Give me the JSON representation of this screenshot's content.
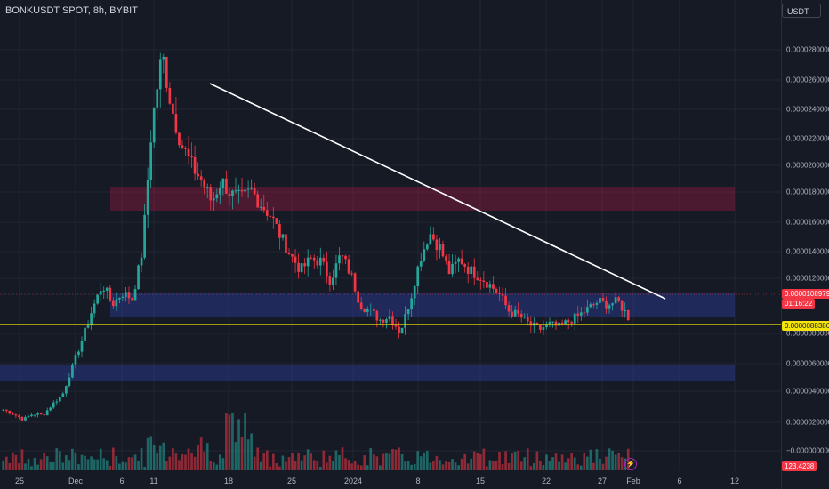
{
  "header": {
    "title": "BONKUSDT SPOT, 8h, BYBIT",
    "currency_button": "USDT"
  },
  "price_axis": {
    "ticks": [
      "0.0000280000",
      "0.0000260000",
      "0.0000240000",
      "0.0000220000",
      "0.0000200000",
      "0.0000180000",
      "0.0000160000",
      "0.0000140000",
      "0.0000120000",
      "0.0000080000",
      "0.0000060000",
      "0.0000040000",
      "0.0000020000",
      "−0.0000000000"
    ],
    "last_price": "0.0000108979",
    "countdown": "01:16:22",
    "level_label": "0.0000088386",
    "volume_label": "123.4238"
  },
  "time_axis": {
    "ticks": [
      "25",
      "Dec",
      "6",
      "11",
      "18",
      "25",
      "2024",
      "8",
      "15",
      "22",
      "27",
      "Feb",
      "6",
      "12"
    ]
  },
  "colors": {
    "background": "#161a25",
    "up": "#26a69a",
    "down": "#f23645",
    "resistance_zone": "#8b1d3f",
    "support_zone": "#2a3a8a",
    "level_line": "#f5e50b",
    "trendline": "#ffffff"
  },
  "chart_data": {
    "type": "candlestick",
    "symbol": "BONKUSDT",
    "timeframe": "8h",
    "exchange": "BYBIT",
    "ylim": [
      0,
      2.95e-05
    ],
    "close_path": [
      [
        "Nov 22",
        4.4e-06
      ],
      [
        "Nov 25",
        4.1e-06
      ],
      [
        "Nov 27",
        3.7e-06
      ],
      [
        "Nov 29",
        4.1e-06
      ],
      [
        "Dec 1",
        4e-06
      ],
      [
        "Dec 3",
        4.8e-06
      ],
      [
        "Dec 5",
        5.5e-06
      ],
      [
        "Dec 7",
        7.5e-06
      ],
      [
        "Dec 8",
        9.4e-06
      ],
      [
        "Dec 9",
        1.15e-05
      ],
      [
        "Dec 10",
        1.32e-05
      ],
      [
        "Dec 11",
        1.18e-05
      ],
      [
        "Dec 12",
        1.26e-05
      ],
      [
        "Dec 13",
        1.22e-05
      ],
      [
        "Dec 14",
        1.55e-05
      ],
      [
        "Dec 15",
        2.45e-05
      ],
      [
        "Dec 15",
        2.95e-05
      ],
      [
        "Dec 16",
        2.55e-05
      ],
      [
        "Dec 17",
        2.3e-05
      ],
      [
        "Dec 18",
        2.15e-05
      ],
      [
        "Dec 19",
        2.05e-05
      ],
      [
        "Dec 20",
        1.9e-05
      ],
      [
        "Dec 21",
        2.05e-05
      ],
      [
        "Dec 22",
        1.95e-05
      ],
      [
        "Dec 23",
        1.92e-05
      ],
      [
        "Dec 24",
        1.98e-05
      ],
      [
        "Dec 25",
        1.88e-05
      ],
      [
        "Dec 26",
        1.8e-05
      ],
      [
        "Dec 27",
        1.65e-05
      ],
      [
        "Dec 28",
        1.52e-05
      ],
      [
        "Dec 29",
        1.42e-05
      ],
      [
        "Dec 30",
        1.5e-05
      ],
      [
        "Dec 31",
        1.48e-05
      ],
      [
        "Jan 1",
        1.35e-05
      ],
      [
        "Jan 2",
        1.53e-05
      ],
      [
        "Jan 3",
        1.4e-05
      ],
      [
        "Jan 4",
        1.18e-05
      ],
      [
        "Jan 5",
        1.13e-05
      ],
      [
        "Jan 6",
        1.07e-05
      ],
      [
        "Jan 7",
        1.1e-05
      ],
      [
        "Jan 8",
        9.8e-06
      ],
      [
        "Jan 9",
        1.2e-05
      ],
      [
        "Jan 10",
        1.5e-05
      ],
      [
        "Jan 11",
        1.68e-05
      ],
      [
        "Jan 12",
        1.58e-05
      ],
      [
        "Jan 13",
        1.4e-05
      ],
      [
        "Jan 14",
        1.5e-05
      ],
      [
        "Jan 15",
        1.42e-05
      ],
      [
        "Jan 16",
        1.38e-05
      ],
      [
        "Jan 17",
        1.32e-05
      ],
      [
        "Jan 18",
        1.25e-05
      ],
      [
        "Jan 19",
        1.13e-05
      ],
      [
        "Jan 20",
        1.1e-05
      ],
      [
        "Jan 21",
        1.04e-05
      ],
      [
        "Jan 22",
        1e-05
      ],
      [
        "Jan 23",
        1.04e-05
      ],
      [
        "Jan 24",
        1.02e-05
      ],
      [
        "Jan 25",
        1.06e-05
      ],
      [
        "Jan 26",
        1.1e-05
      ],
      [
        "Jan 27",
        1.15e-05
      ],
      [
        "Jan 28",
        1.2e-05
      ],
      [
        "Jan 29",
        1.18e-05
      ],
      [
        "Jan 30",
        1.2e-05
      ],
      [
        "Jan 31",
        1.09e-05
      ]
    ],
    "drawings": {
      "trendline": {
        "from": [
          "Dec 15",
          2.58e-05
        ],
        "to": [
          "Feb 3",
          1.1e-05
        ]
      },
      "resistance_zone": [
        1.7e-05,
        1.86e-05
      ],
      "support_zone": [
        9.6e-06,
        1.13e-05
      ],
      "lower_zone": [
        5e-06,
        6.2e-06
      ],
      "horizontal_level": 8.8386e-06
    }
  }
}
